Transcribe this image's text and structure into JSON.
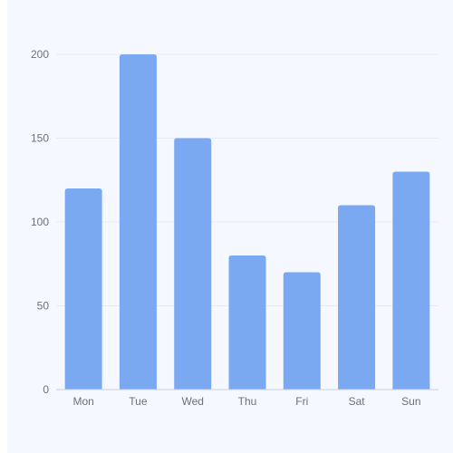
{
  "chart_data": {
    "type": "bar",
    "categories": [
      "Mon",
      "Tue",
      "Wed",
      "Thu",
      "Fri",
      "Sat",
      "Sun"
    ],
    "values": [
      120,
      200,
      150,
      80,
      70,
      110,
      130
    ],
    "ylim": [
      0,
      200
    ],
    "yticks": [
      0,
      50,
      100,
      150,
      200
    ],
    "grid": true,
    "colors": {
      "bar": "#7aa9f2",
      "grid": "#e6ebf5",
      "axis": "#c9d2e3",
      "panel": "#f5f8fe",
      "text": "#6e7079"
    }
  }
}
